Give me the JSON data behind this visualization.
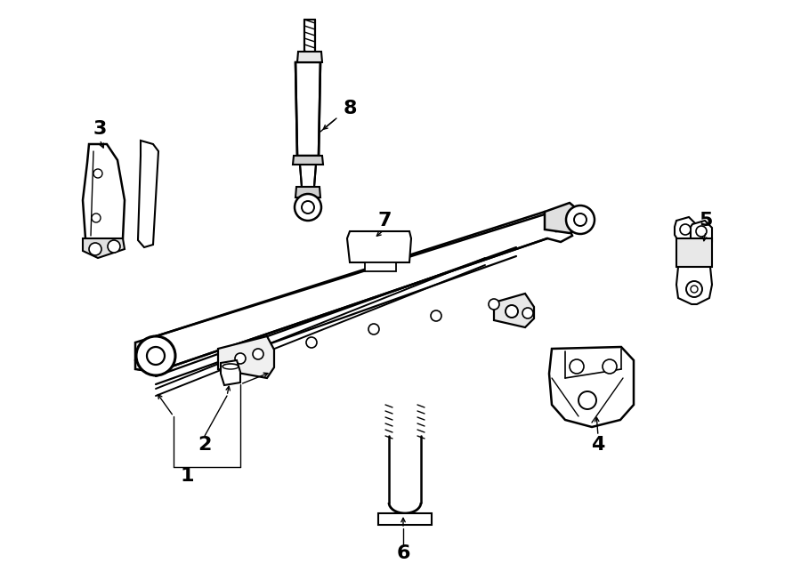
{
  "bg_color": "#ffffff",
  "line_color": "#000000",
  "fig_width": 9.0,
  "fig_height": 6.61,
  "dpi": 100,
  "font_size": 16
}
